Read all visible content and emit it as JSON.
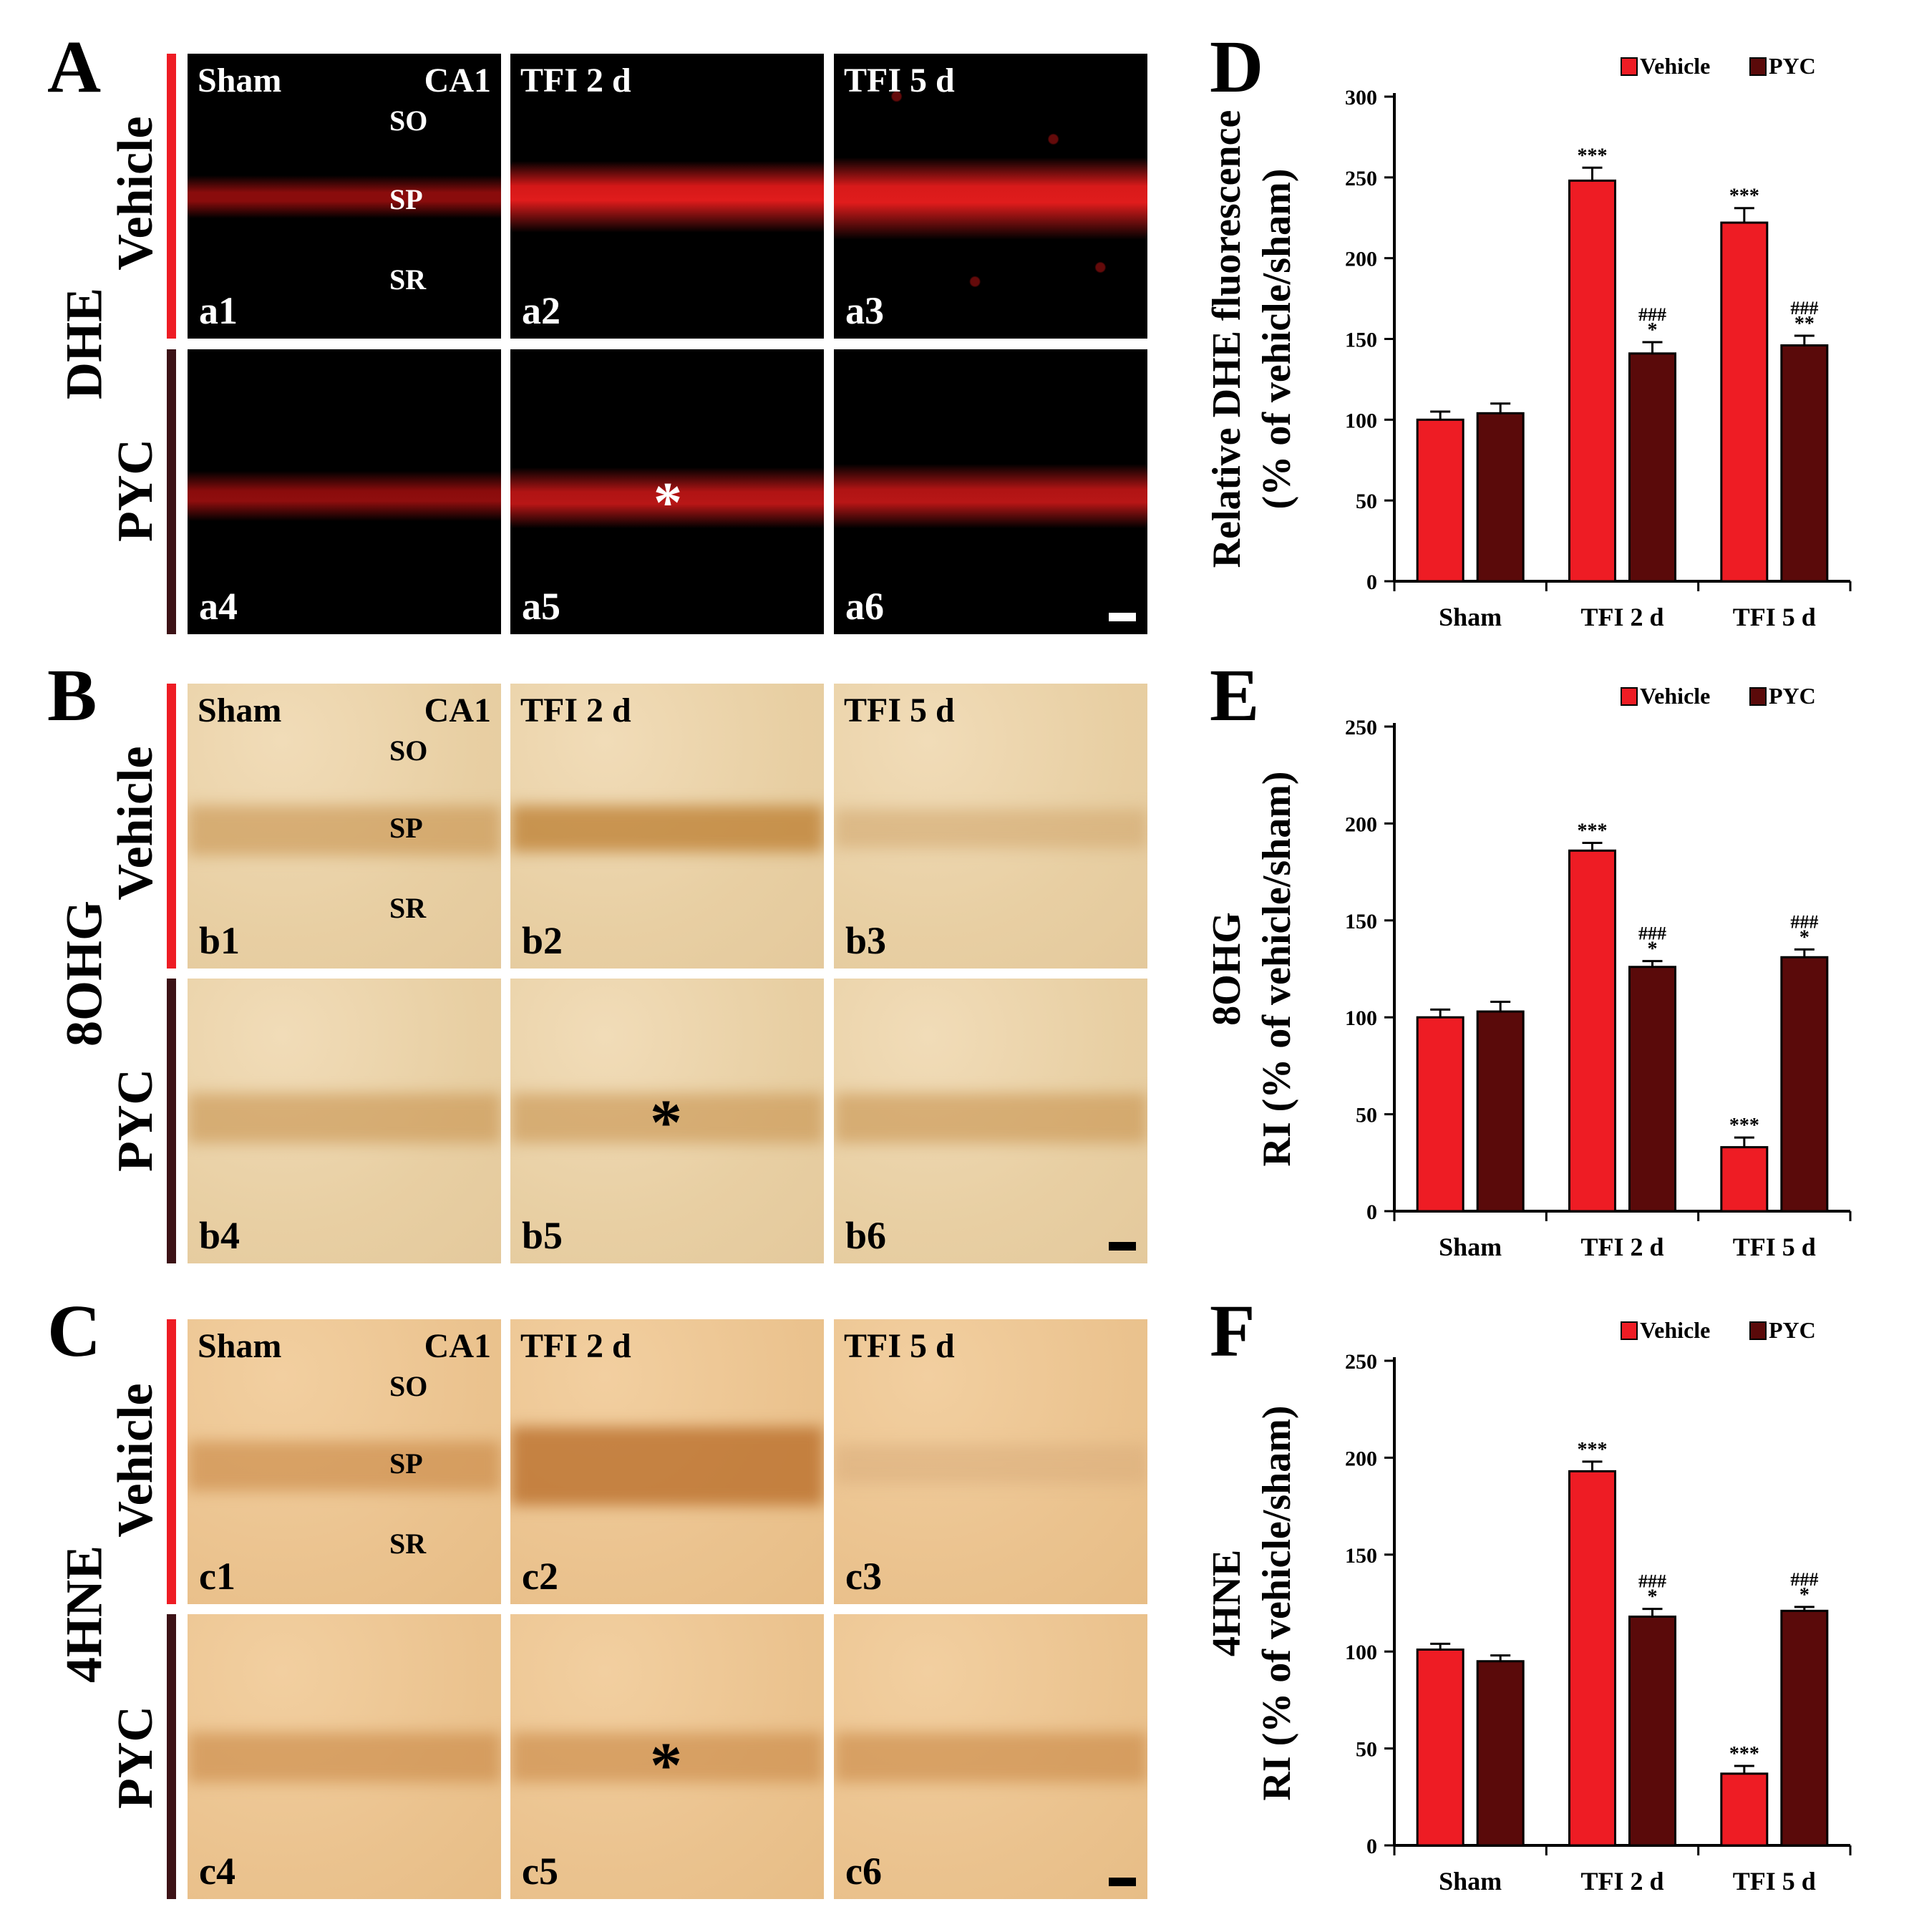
{
  "panel_letters": {
    "A": "A",
    "B": "B",
    "C": "C",
    "D": "D",
    "E": "E",
    "F": "F"
  },
  "group_labels": {
    "a": "DHE",
    "b": "8OHG",
    "c": "4HNE"
  },
  "row_labels": {
    "vehicle": "Vehicle",
    "pyc": "PYC"
  },
  "column_labels": {
    "sham": "Sham",
    "tfi2": "TFI 2 d",
    "tfi5": "TFI 5 d"
  },
  "region_labels": {
    "ca1": "CA1",
    "so": "SO",
    "sp": "SP",
    "sr": "SR"
  },
  "asterisk": "*",
  "panel_ids": {
    "a": [
      "a1",
      "a2",
      "a3",
      "a4",
      "a5",
      "a6"
    ],
    "b": [
      "b1",
      "b2",
      "b3",
      "b4",
      "b5",
      "b6"
    ],
    "c": [
      "c1",
      "c2",
      "c3",
      "c4",
      "c5",
      "c6"
    ]
  },
  "colors": {
    "vehicle": "#ee1c24",
    "pyc": "#5a0a0a"
  },
  "chart_data": [
    {
      "id": "D",
      "type": "bar",
      "title": "",
      "ylabel_line1": "Relative DHE fluorescence",
      "ylabel_line2": "(% of vehicle/sham)",
      "categories": [
        "Sham",
        "TFI 2 d",
        "TFI 5 d"
      ],
      "ylim": [
        0,
        300
      ],
      "yticks": [
        0,
        50,
        100,
        150,
        200,
        250,
        300
      ],
      "legend": [
        "Vehicle",
        "PYC"
      ],
      "legend_position": "top-right",
      "series": [
        {
          "name": "Vehicle",
          "values": [
            100,
            248,
            222
          ],
          "errors": [
            5,
            8,
            9
          ],
          "marks": [
            "",
            "***",
            "***"
          ],
          "marks2": [
            "",
            "",
            ""
          ]
        },
        {
          "name": "PYC",
          "values": [
            104,
            141,
            146
          ],
          "errors": [
            6,
            7,
            6
          ],
          "marks": [
            "",
            "*",
            "**"
          ],
          "marks2": [
            "",
            "###",
            "###"
          ]
        }
      ]
    },
    {
      "id": "E",
      "type": "bar",
      "title": "",
      "ylabel_line1": "8OHG",
      "ylabel_line2": "RI (% of vehicle/sham)",
      "categories": [
        "Sham",
        "TFI 2 d",
        "TFI 5 d"
      ],
      "ylim": [
        0,
        250
      ],
      "yticks": [
        0,
        50,
        100,
        150,
        200,
        250
      ],
      "legend": [
        "Vehicle",
        "PYC"
      ],
      "legend_position": "top-right",
      "series": [
        {
          "name": "Vehicle",
          "values": [
            100,
            186,
            33
          ],
          "errors": [
            4,
            4,
            5
          ],
          "marks": [
            "",
            "***",
            "***"
          ],
          "marks2": [
            "",
            "",
            ""
          ]
        },
        {
          "name": "PYC",
          "values": [
            103,
            126,
            131
          ],
          "errors": [
            5,
            3,
            4
          ],
          "marks": [
            "",
            "*",
            "*"
          ],
          "marks2": [
            "",
            "###",
            "###"
          ]
        }
      ]
    },
    {
      "id": "F",
      "type": "bar",
      "title": "",
      "ylabel_line1": "4HNE",
      "ylabel_line2": "RI (% of vehicle/sham)",
      "categories": [
        "Sham",
        "TFI 2 d",
        "TFI 5 d"
      ],
      "ylim": [
        0,
        250
      ],
      "yticks": [
        0,
        50,
        100,
        150,
        200,
        250
      ],
      "legend": [
        "Vehicle",
        "PYC"
      ],
      "legend_position": "top-right",
      "series": [
        {
          "name": "Vehicle",
          "values": [
            101,
            193,
            37
          ],
          "errors": [
            3,
            5,
            4
          ],
          "marks": [
            "",
            "***",
            "***"
          ],
          "marks2": [
            "",
            "",
            ""
          ]
        },
        {
          "name": "PYC",
          "values": [
            95,
            118,
            121
          ],
          "errors": [
            3,
            4,
            2
          ],
          "marks": [
            "",
            "*",
            "*"
          ],
          "marks2": [
            "",
            "###",
            "###"
          ]
        }
      ]
    }
  ]
}
